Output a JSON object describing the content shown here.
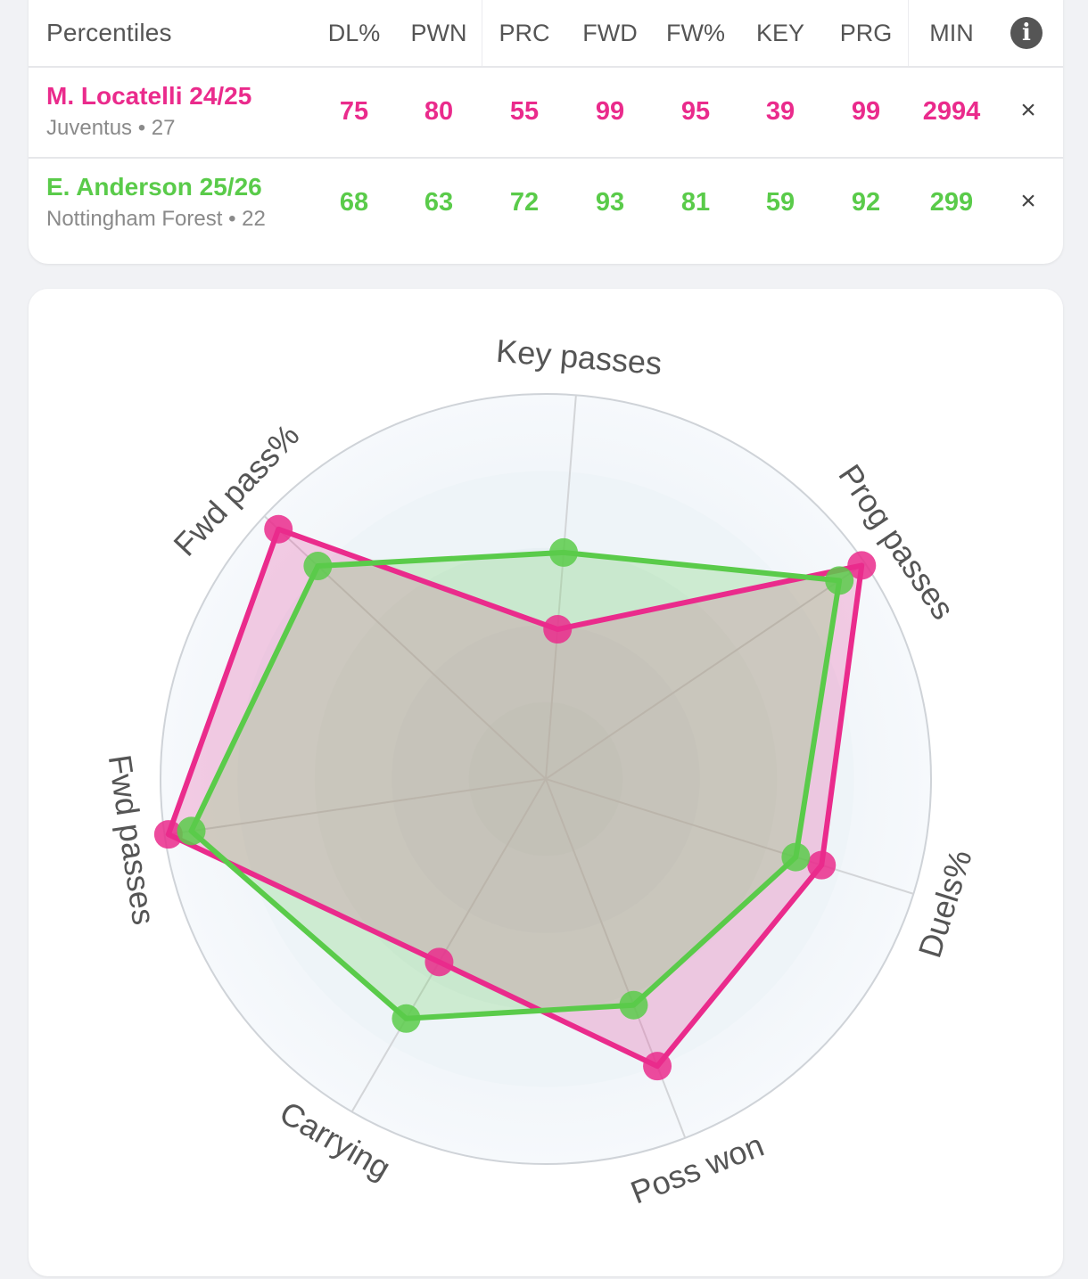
{
  "colors": {
    "player1": "#ea2b8c",
    "player2": "#5acb4a"
  },
  "table": {
    "title": "Percentiles",
    "columns": [
      "DL%",
      "PWN",
      "PRC",
      "FWD",
      "FW%",
      "KEY",
      "PRG",
      "MIN"
    ],
    "info_icon": "info-icon",
    "players": [
      {
        "name": "M. Locatelli 24/25",
        "sub": "Juventus • 27",
        "values": [
          "75",
          "80",
          "55",
          "99",
          "95",
          "39",
          "99",
          "2994"
        ],
        "remove": "×"
      },
      {
        "name": "E. Anderson 25/26",
        "sub": "Nottingham Forest • 22",
        "values": [
          "68",
          "63",
          "72",
          "93",
          "81",
          "59",
          "92",
          "299"
        ],
        "remove": "×"
      }
    ]
  },
  "chart_data": {
    "type": "radar",
    "axes": [
      "Key passes",
      "Prog passes",
      "Duels%",
      "Poss won",
      "Carrying",
      "Fwd passes",
      "Fwd pass%"
    ],
    "range": [
      0,
      100
    ],
    "series": [
      {
        "name": "M. Locatelli 24/25",
        "values": [
          39,
          99,
          75,
          80,
          55,
          99,
          95
        ]
      },
      {
        "name": "E. Anderson 25/26",
        "values": [
          59,
          92,
          68,
          63,
          72,
          93,
          81
        ]
      }
    ]
  }
}
